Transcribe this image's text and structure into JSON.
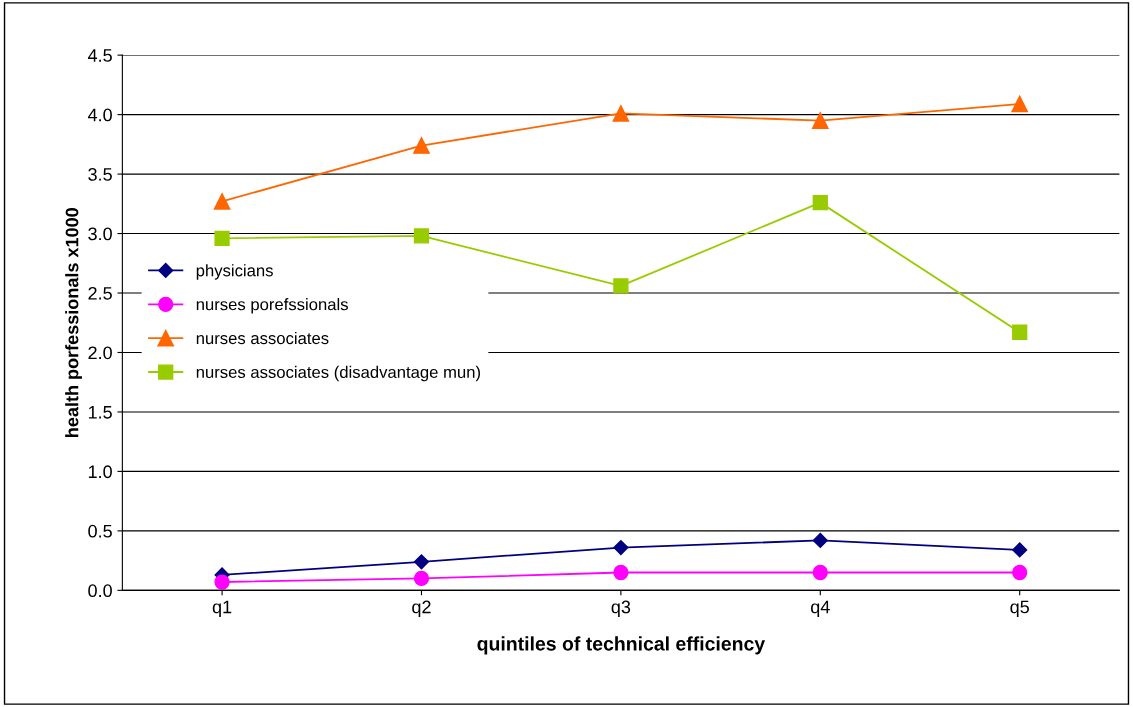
{
  "chart_data": {
    "type": "line",
    "xlabel": "quintiles of technical efficiency",
    "ylabel": "health porfessionals x1000",
    "categories": [
      "q1",
      "q2",
      "q3",
      "q4",
      "q5"
    ],
    "series": [
      {
        "name": "physicians",
        "color": "#000080",
        "marker": "diamond",
        "values": [
          0.13,
          0.24,
          0.36,
          0.42,
          0.34
        ]
      },
      {
        "name": "nurses porefssionals",
        "color": "#ff00ff",
        "marker": "circle",
        "values": [
          0.07,
          0.1,
          0.15,
          0.15,
          0.15
        ]
      },
      {
        "name": "nurses associates",
        "color": "#ff6600",
        "marker": "triangle",
        "values": [
          3.27,
          3.74,
          4.01,
          3.95,
          4.09
        ]
      },
      {
        "name": "nurses associates (disadvantage mun)",
        "color": "#99cc00",
        "marker": "square",
        "values": [
          2.96,
          2.98,
          2.56,
          3.26,
          2.17
        ]
      }
    ],
    "ylim": [
      0,
      4.5
    ],
    "yticks": [
      {
        "value": 0,
        "label": "0.0"
      },
      {
        "value": 0.5,
        "label": "0.5"
      },
      {
        "value": 1,
        "label": "1.0"
      },
      {
        "value": 1.5,
        "label": "1.5"
      },
      {
        "value": 2,
        "label": "2.0"
      },
      {
        "value": 2.5,
        "label": "2.5"
      },
      {
        "value": 3,
        "label": "3.0"
      },
      {
        "value": 3.5,
        "label": "3.5"
      },
      {
        "value": 4,
        "label": "4.0"
      },
      {
        "value": 4.5,
        "label": "4.5"
      }
    ],
    "grid": "y",
    "legend": "center left",
    "line_style": "solid"
  }
}
